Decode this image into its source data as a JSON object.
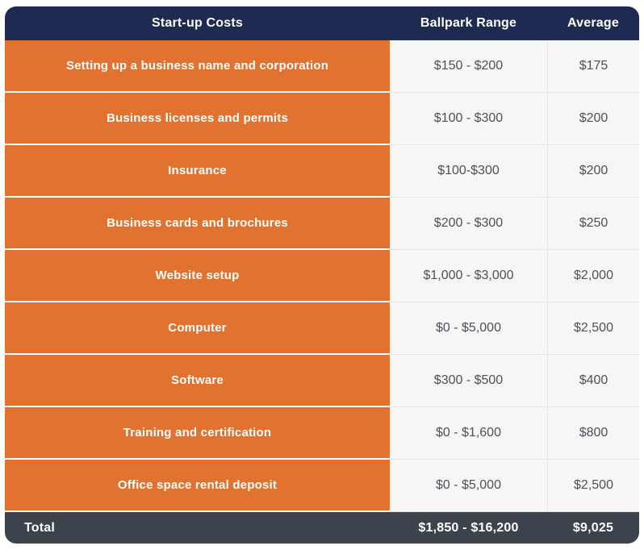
{
  "table": {
    "header": {
      "costs_label": "Start-up Costs",
      "range_label": "Ballpark Range",
      "average_label": "Average"
    },
    "rows": [
      {
        "label": "Setting up a business name and corporation",
        "range": "$150 - $200",
        "average": "$175"
      },
      {
        "label": "Business licenses and permits",
        "range": "$100 - $300",
        "average": "$200"
      },
      {
        "label": "Insurance",
        "range": "$100-$300",
        "average": "$200"
      },
      {
        "label": "Business cards and brochures",
        "range": "$200 - $300",
        "average": "$250"
      },
      {
        "label": "Website setup",
        "range": "$1,000 - $3,000",
        "average": "$2,000"
      },
      {
        "label": "Computer",
        "range": "$0 - $5,000",
        "average": "$2,500"
      },
      {
        "label": "Software",
        "range": "$300 - $500",
        "average": "$400"
      },
      {
        "label": "Training and certification",
        "range": "$0 - $1,600",
        "average": "$800"
      },
      {
        "label": "Office space rental deposit",
        "range": "$0 - $5,000",
        "average": "$2,500"
      }
    ],
    "footer": {
      "label": "Total",
      "range": "$1,850 - $16,200",
      "average": "$9,025"
    },
    "colors": {
      "header_bg": "#1E2A52",
      "category_bg": "#E1722F",
      "value_bg": "#F5F6F5",
      "footer_bg": "#3D434D",
      "value_text": "#4F5058",
      "divider": "#E7E5E3"
    }
  },
  "chart_data": {
    "type": "table",
    "title": "Start-up Costs",
    "columns": [
      "Start-up Costs",
      "Ballpark Range",
      "Average"
    ],
    "rows": [
      {
        "item": "Setting up a business name and corporation",
        "range_text": "$150 - $200",
        "range_min": 150,
        "range_max": 200,
        "average": 175
      },
      {
        "item": "Business licenses and permits",
        "range_text": "$100 - $300",
        "range_min": 100,
        "range_max": 300,
        "average": 200
      },
      {
        "item": "Insurance",
        "range_text": "$100-$300",
        "range_min": 100,
        "range_max": 300,
        "average": 200
      },
      {
        "item": "Business cards and brochures",
        "range_text": "$200 - $300",
        "range_min": 200,
        "range_max": 300,
        "average": 250
      },
      {
        "item": "Website setup",
        "range_text": "$1,000 - $3,000",
        "range_min": 1000,
        "range_max": 3000,
        "average": 2000
      },
      {
        "item": "Computer",
        "range_text": "$0 - $5,000",
        "range_min": 0,
        "range_max": 5000,
        "average": 2500
      },
      {
        "item": "Software",
        "range_text": "$300 - $500",
        "range_min": 300,
        "range_max": 500,
        "average": 400
      },
      {
        "item": "Training and certification",
        "range_text": "$0 - $1,600",
        "range_min": 0,
        "range_max": 1600,
        "average": 800
      },
      {
        "item": "Office space rental deposit",
        "range_text": "$0 - $5,000",
        "range_min": 0,
        "range_max": 5000,
        "average": 2500
      }
    ],
    "total": {
      "item": "Total",
      "range_text": "$1,850 - $16,200",
      "range_min": 1850,
      "range_max": 16200,
      "average": 9025
    }
  }
}
